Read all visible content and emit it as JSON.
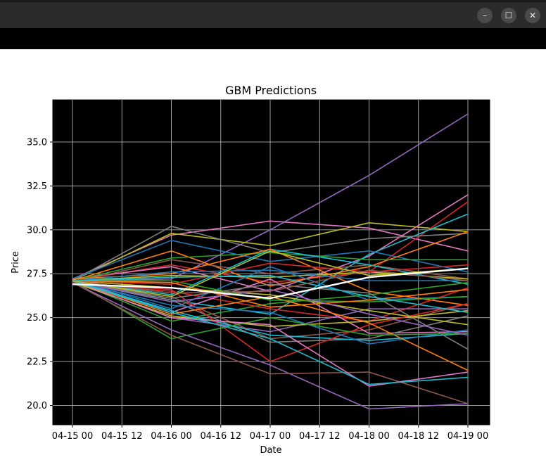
{
  "window": {
    "minimize_glyph": "–",
    "maximize_glyph": "☐",
    "close_glyph": "✕"
  },
  "chart_data": {
    "type": "line",
    "title": "GBM Predictions",
    "xlabel": "Date",
    "ylabel": "Price",
    "x": [
      "04-15 00",
      "04-16 00",
      "04-17 00",
      "04-18 00",
      "04-19 00"
    ],
    "x_ticks": [
      "04-15 00",
      "04-15 12",
      "04-16 00",
      "04-16 12",
      "04-17 00",
      "04-17 12",
      "04-18 00",
      "04-18 12",
      "04-19 00"
    ],
    "y_ticks": [
      20.0,
      22.5,
      25.0,
      27.5,
      30.0,
      32.5,
      35.0
    ],
    "xlim": [
      "04-14 16",
      "04-19 01"
    ],
    "ylim": [
      18.9,
      37.4
    ],
    "background": "#000000",
    "grid": true,
    "series": [
      {
        "color": "#9467bd",
        "values": [
          27.1,
          27.2,
          30.0,
          33.1,
          36.6
        ]
      },
      {
        "color": "#e377c2",
        "values": [
          27.2,
          29.7,
          30.5,
          30.1,
          28.8
        ]
      },
      {
        "color": "#bcbd22",
        "values": [
          27.1,
          29.8,
          29.1,
          30.4,
          29.9
        ]
      },
      {
        "color": "#d62728",
        "values": [
          27.1,
          28.0,
          27.0,
          27.6,
          31.6
        ]
      },
      {
        "color": "#e377c2",
        "values": [
          27.2,
          27.9,
          26.5,
          28.5,
          32.0
        ]
      },
      {
        "color": "#17becf",
        "values": [
          27.1,
          26.0,
          25.2,
          28.6,
          30.9
        ]
      },
      {
        "color": "#7f7f7f",
        "values": [
          27.1,
          30.2,
          28.7,
          29.5,
          29.8
        ]
      },
      {
        "color": "#1f77b4",
        "values": [
          27.2,
          29.4,
          28.2,
          28.8,
          27.6
        ]
      },
      {
        "color": "#ff7f0e",
        "values": [
          27.1,
          28.8,
          26.8,
          27.9,
          29.9
        ]
      },
      {
        "color": "#2ca02c",
        "values": [
          27.1,
          28.4,
          28.7,
          28.3,
          28.3
        ]
      },
      {
        "color": "#8c564b",
        "values": [
          27.0,
          28.3,
          27.5,
          28.0,
          27.2
        ]
      },
      {
        "color": "#ffffff",
        "values": [
          26.9,
          26.7,
          26.1,
          27.3,
          27.8
        ]
      },
      {
        "color": "#bcbd22",
        "values": [
          27.1,
          27.4,
          27.3,
          27.6,
          27.2
        ]
      },
      {
        "color": "#17becf",
        "values": [
          27.1,
          26.3,
          28.9,
          28.0,
          26.9
        ]
      },
      {
        "color": "#1f77b4",
        "values": [
          27.2,
          25.5,
          27.9,
          26.0,
          26.2
        ]
      },
      {
        "color": "#ff7f0e",
        "values": [
          27.2,
          27.5,
          28.9,
          26.5,
          25.7
        ]
      },
      {
        "color": "#2ca02c",
        "values": [
          27.1,
          24.8,
          25.8,
          26.3,
          27.0
        ]
      },
      {
        "color": "#d62728",
        "values": [
          27.0,
          26.5,
          25.5,
          24.8,
          26.7
        ]
      },
      {
        "color": "#9467bd",
        "values": [
          27.1,
          25.0,
          24.2,
          25.5,
          25.5
        ]
      },
      {
        "color": "#8c564b",
        "values": [
          27.1,
          26.2,
          23.8,
          24.3,
          25.8
        ]
      },
      {
        "color": "#e377c2",
        "values": [
          27.2,
          25.3,
          27.2,
          24.1,
          24.2
        ]
      },
      {
        "color": "#7f7f7f",
        "values": [
          27.1,
          26.0,
          23.6,
          23.8,
          25.1
        ]
      },
      {
        "color": "#bcbd22",
        "values": [
          27.0,
          25.1,
          24.5,
          24.8,
          25.4
        ]
      },
      {
        "color": "#17becf",
        "values": [
          27.1,
          25.4,
          24.0,
          23.7,
          24.1
        ]
      },
      {
        "color": "#d62728",
        "values": [
          27.0,
          26.6,
          22.5,
          24.6,
          25.8
        ]
      },
      {
        "color": "#1f77b4",
        "values": [
          27.1,
          25.7,
          25.3,
          23.5,
          24.3
        ]
      },
      {
        "color": "#ff7f0e",
        "values": [
          27.1,
          25.2,
          26.2,
          24.7,
          22.0
        ]
      },
      {
        "color": "#2ca02c",
        "values": [
          27.1,
          23.8,
          25.0,
          24.0,
          24.1
        ]
      },
      {
        "color": "#9467bd",
        "values": [
          27.0,
          24.3,
          22.3,
          19.8,
          20.1
        ]
      },
      {
        "color": "#8c564b",
        "values": [
          27.0,
          24.0,
          21.8,
          21.9,
          20.1
        ]
      },
      {
        "color": "#e377c2",
        "values": [
          27.1,
          25.0,
          24.6,
          21.1,
          21.9
        ]
      },
      {
        "color": "#17becf",
        "values": [
          27.1,
          25.3,
          23.8,
          21.2,
          21.6
        ]
      },
      {
        "color": "#7f7f7f",
        "values": [
          27.1,
          26.1,
          26.9,
          26.4,
          23.2
        ]
      },
      {
        "color": "#bcbd22",
        "values": [
          27.1,
          26.7,
          26.3,
          25.4,
          24.6
        ]
      },
      {
        "color": "#2ca02c",
        "values": [
          27.1,
          27.1,
          26.0,
          25.9,
          26.2
        ]
      },
      {
        "color": "#d62728",
        "values": [
          27.1,
          26.9,
          28.1,
          27.6,
          28.0
        ]
      },
      {
        "color": "#1f77b4",
        "values": [
          27.1,
          27.6,
          27.7,
          27.1,
          27.1
        ]
      },
      {
        "color": "#ff7f0e",
        "values": [
          27.1,
          27.0,
          25.6,
          26.0,
          26.6
        ]
      },
      {
        "color": "#17becf",
        "values": [
          27.1,
          27.3,
          27.4,
          26.2,
          25.3
        ]
      },
      {
        "color": "#9467bd",
        "values": [
          27.1,
          25.9,
          26.6,
          25.2,
          24.0
        ]
      },
      {
        "color": "#8c564b",
        "values": [
          27.1,
          26.4,
          26.5,
          27.7,
          27.1
        ]
      },
      {
        "color": "#bcbd22",
        "values": [
          27.1,
          26.2,
          28.8,
          27.4,
          27.8
        ]
      }
    ]
  }
}
